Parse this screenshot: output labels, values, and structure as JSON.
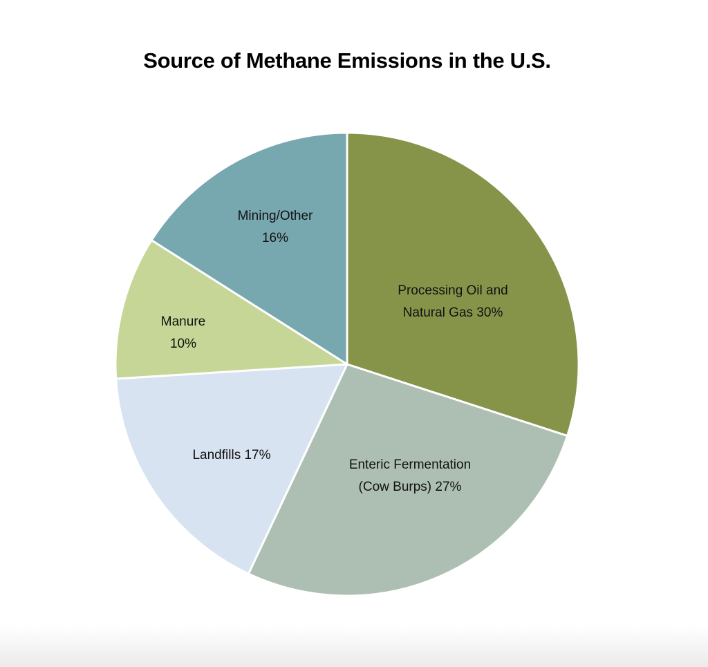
{
  "chart_data": {
    "type": "pie",
    "title": "Source of Methane Emissions in the U.S.",
    "start": "12 o'clock, clockwise",
    "slices": [
      {
        "name": "Processing Oil and Natural Gas",
        "value": 30,
        "color": "#86944a",
        "label_lines": [
          "Processing Oil and",
          "Natural Gas 30%"
        ]
      },
      {
        "name": "Enteric Fermentation (Cow Burps)",
        "value": 27,
        "color": "#adbfb2",
        "label_lines": [
          "Enteric Fermentation",
          "(Cow Burps) 27%"
        ]
      },
      {
        "name": "Landfills",
        "value": 17,
        "color": "#d7e3f0",
        "label_lines": [
          "Landfills 17%"
        ]
      },
      {
        "name": "Manure",
        "value": 10,
        "color": "#c5d696",
        "label_lines": [
          "Manure",
          "10%"
        ]
      },
      {
        "name": "Mining/Other",
        "value": 16,
        "color": "#77a8b0",
        "label_lines": [
          "Mining/Other",
          "16%"
        ]
      }
    ]
  }
}
